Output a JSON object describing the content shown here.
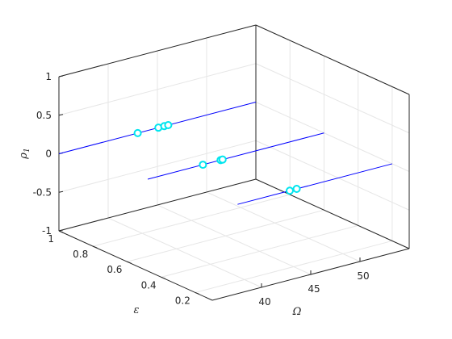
{
  "chart_data": {
    "type": "line3d",
    "xlabel": "Ω",
    "ylabel": "ε",
    "zlabel": "ρ",
    "zlabel_subscript": "1",
    "xlim": [
      35,
      55
    ],
    "ylim": [
      0.1,
      1
    ],
    "zlim": [
      -1,
      1
    ],
    "xticks": [
      40,
      45,
      50
    ],
    "yticks": [
      0.2,
      0.4,
      0.6,
      0.8,
      1
    ],
    "zticks": [
      -1,
      -0.5,
      0,
      0.5,
      1
    ],
    "xtick_labels": [
      "40",
      "45",
      "50"
    ],
    "ytick_labels": [
      "0.2",
      "0.4",
      "0.6",
      "0.8",
      "1"
    ],
    "ztick_labels": [
      "-1",
      "-0.5",
      "0",
      "0.5",
      "1"
    ],
    "grid": true,
    "series": [
      {
        "color": "#0000ff",
        "x": [
          35,
          55
        ],
        "y": [
          1.0,
          1.0
        ],
        "z": [
          0,
          0
        ]
      },
      {
        "color": "#0000ff",
        "x": [
          37.1,
          55
        ],
        "y": [
          0.6,
          0.6
        ],
        "z": [
          0,
          0
        ]
      },
      {
        "color": "#0000ff",
        "x": [
          39.3,
          55
        ],
        "y": [
          0.2,
          0.2
        ],
        "z": [
          0,
          0
        ]
      }
    ],
    "markers": {
      "color": "#00e5ee",
      "points": [
        {
          "x": 43.0,
          "y": 1.0,
          "z": 0
        },
        {
          "x": 45.1,
          "y": 1.0,
          "z": 0
        },
        {
          "x": 45.7,
          "y": 1.0,
          "z": 0
        },
        {
          "x": 46.1,
          "y": 1.0,
          "z": 0
        },
        {
          "x": 42.7,
          "y": 0.6,
          "z": 0
        },
        {
          "x": 44.5,
          "y": 0.6,
          "z": 0
        },
        {
          "x": 44.7,
          "y": 0.6,
          "z": 0
        },
        {
          "x": 44.6,
          "y": 0.2,
          "z": 0
        },
        {
          "x": 45.3,
          "y": 0.2,
          "z": 0
        }
      ]
    }
  }
}
